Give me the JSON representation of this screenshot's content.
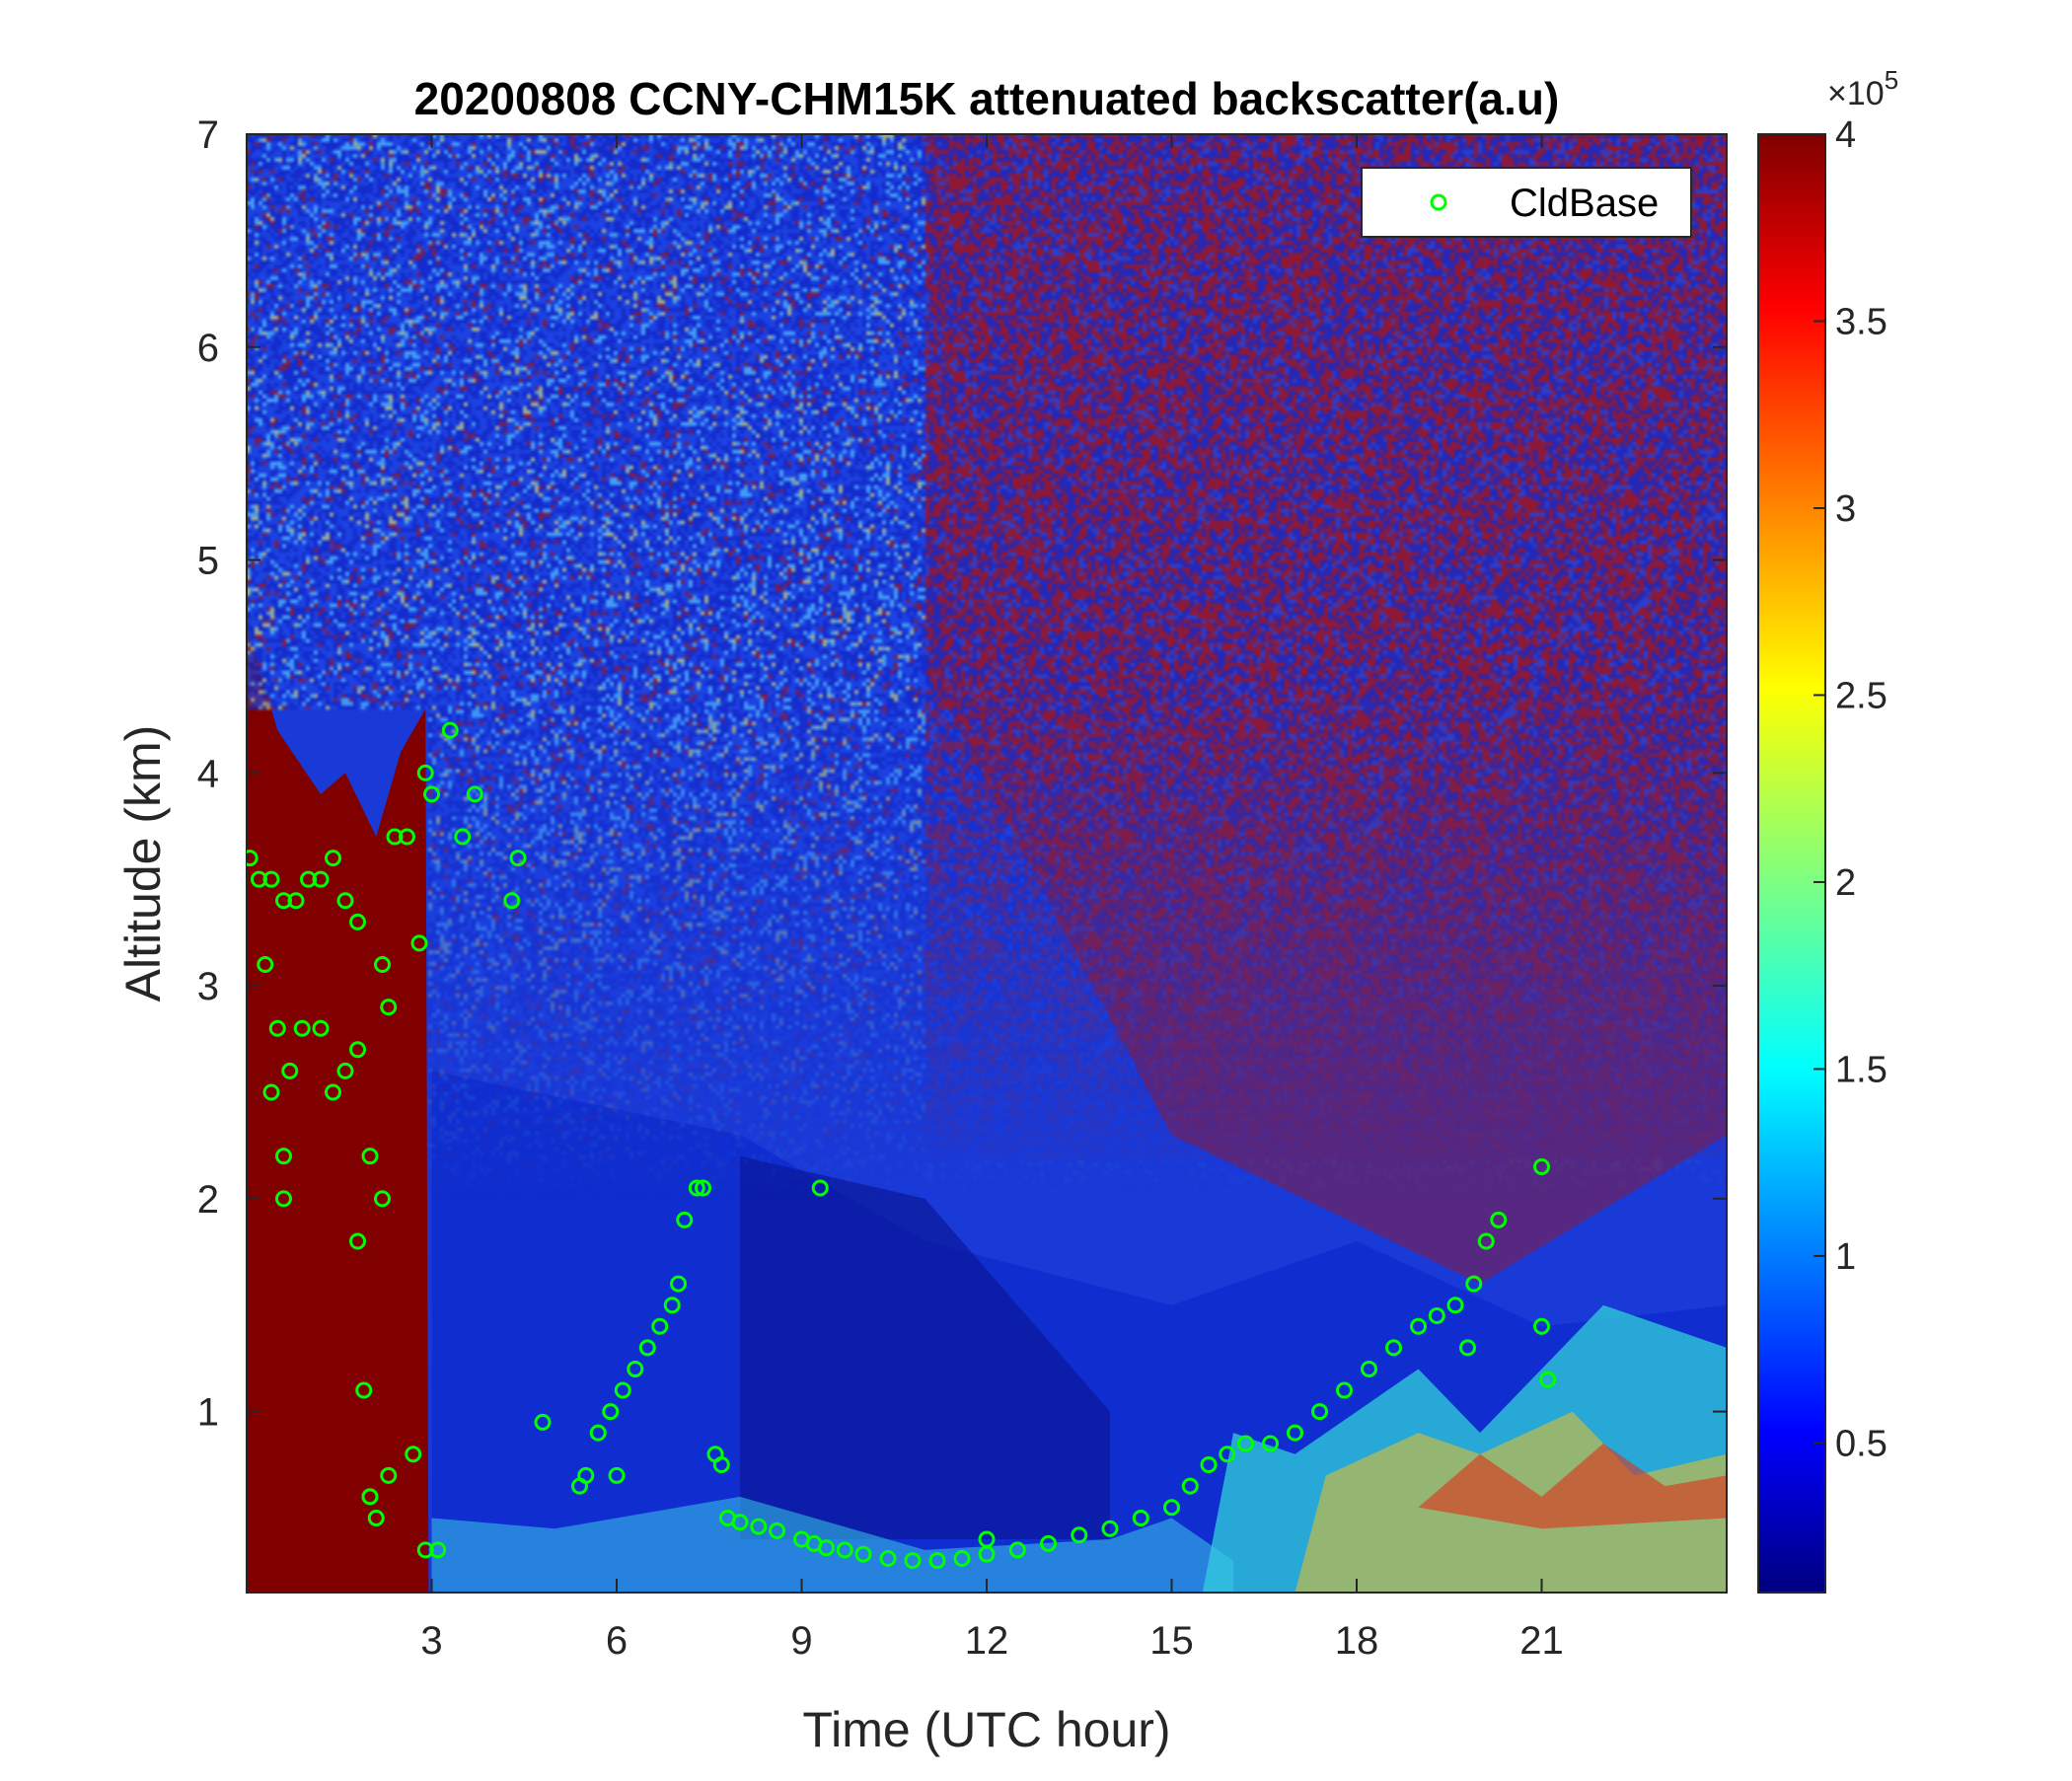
{
  "chart_data": {
    "type": "heatmap",
    "title": "20200808 CCNY-CHM15K attenuated backscatter(a.u)",
    "xlabel": "Time (UTC hour)",
    "ylabel": "Altitude (km)",
    "xlim": [
      0,
      24
    ],
    "ylim": [
      0.15,
      7
    ],
    "xticks": [
      3,
      6,
      9,
      12,
      15,
      18,
      21
    ],
    "xtick_labels": [
      "3",
      "6",
      "9",
      "12",
      "15",
      "18",
      "21"
    ],
    "yticks": [
      1,
      2,
      3,
      4,
      5,
      6,
      7
    ],
    "ytick_labels": [
      "1",
      "2",
      "3",
      "4",
      "5",
      "6",
      "7"
    ],
    "colorbar": {
      "colormap": "jet",
      "range": [
        10000,
        400000
      ],
      "ticks": [
        0.5,
        1,
        1.5,
        2,
        2.5,
        3,
        3.5,
        4
      ],
      "tick_labels": [
        "0.5",
        "1",
        "1.5",
        "2",
        "2.5",
        "3",
        "3.5",
        "4"
      ],
      "exponent_label": "×10",
      "exponent_power": "5",
      "colors": [
        "#000080",
        "#0000ff",
        "#00ffff",
        "#ffff00",
        "#ff0000",
        "#800000"
      ]
    },
    "legend": {
      "placement": "top-right",
      "entries": [
        {
          "label": "CldBase",
          "marker": "circle",
          "color": "#00ff00"
        }
      ]
    },
    "series": [
      {
        "name": "CldBase",
        "type": "scatter",
        "color": "#00ff00",
        "x": [
          0.05,
          0.2,
          0.4,
          0.6,
          0.8,
          1.0,
          1.2,
          1.4,
          1.6,
          1.8,
          2.0,
          2.2,
          2.4,
          2.6,
          2.8,
          2.9,
          3.0,
          3.3,
          3.5,
          3.7,
          4.3,
          4.4,
          0.3,
          0.5,
          0.7,
          0.9,
          1.2,
          1.4,
          1.6,
          1.8,
          2.0,
          2.2,
          2.3,
          0.4,
          0.6,
          0.6,
          1.8,
          1.9,
          2.0,
          2.1,
          2.3,
          2.7,
          2.9,
          3.1,
          4.8,
          5.4,
          5.5,
          5.7,
          5.9,
          6.1,
          6.3,
          6.5,
          6.7,
          6.9,
          7.0,
          7.1,
          7.3,
          7.6,
          7.7,
          7.8,
          8.0,
          8.3,
          8.6,
          9.0,
          9.2,
          9.4,
          9.7,
          10.0,
          10.4,
          10.8,
          11.2,
          11.6,
          12.0,
          12.5,
          13.0,
          13.5,
          14.0,
          14.5,
          15.0,
          15.3,
          15.6,
          15.9,
          16.2,
          16.6,
          17.0,
          17.4,
          17.8,
          18.2,
          18.6,
          19.0,
          19.3,
          19.6,
          19.8,
          19.9,
          20.1,
          20.3,
          21.0,
          21.0,
          21.1,
          7.4,
          9.3,
          6.0,
          12.0
        ],
        "y": [
          3.6,
          3.5,
          3.5,
          3.4,
          3.4,
          3.5,
          3.5,
          3.6,
          3.4,
          3.3,
          0.6,
          3.1,
          3.7,
          3.7,
          3.2,
          4.0,
          3.9,
          4.2,
          3.7,
          3.9,
          3.4,
          3.6,
          3.1,
          2.8,
          2.6,
          2.8,
          2.8,
          2.5,
          2.6,
          2.7,
          2.2,
          2.0,
          2.9,
          2.5,
          2.2,
          2.0,
          1.8,
          1.1,
          0.6,
          0.5,
          0.7,
          0.8,
          0.35,
          0.35,
          0.95,
          0.65,
          0.7,
          0.9,
          1.0,
          1.1,
          1.2,
          1.3,
          1.4,
          1.5,
          1.6,
          1.9,
          2.05,
          0.8,
          0.75,
          0.5,
          0.48,
          0.46,
          0.44,
          0.4,
          0.38,
          0.36,
          0.35,
          0.33,
          0.31,
          0.3,
          0.3,
          0.31,
          0.33,
          0.35,
          0.38,
          0.42,
          0.45,
          0.5,
          0.55,
          0.65,
          0.75,
          0.8,
          0.85,
          0.85,
          0.9,
          1.0,
          1.1,
          1.2,
          1.3,
          1.4,
          1.45,
          1.5,
          1.3,
          1.6,
          1.8,
          1.9,
          2.15,
          1.4,
          1.15,
          2.05,
          2.05,
          0.7,
          0.4
        ]
      }
    ]
  }
}
